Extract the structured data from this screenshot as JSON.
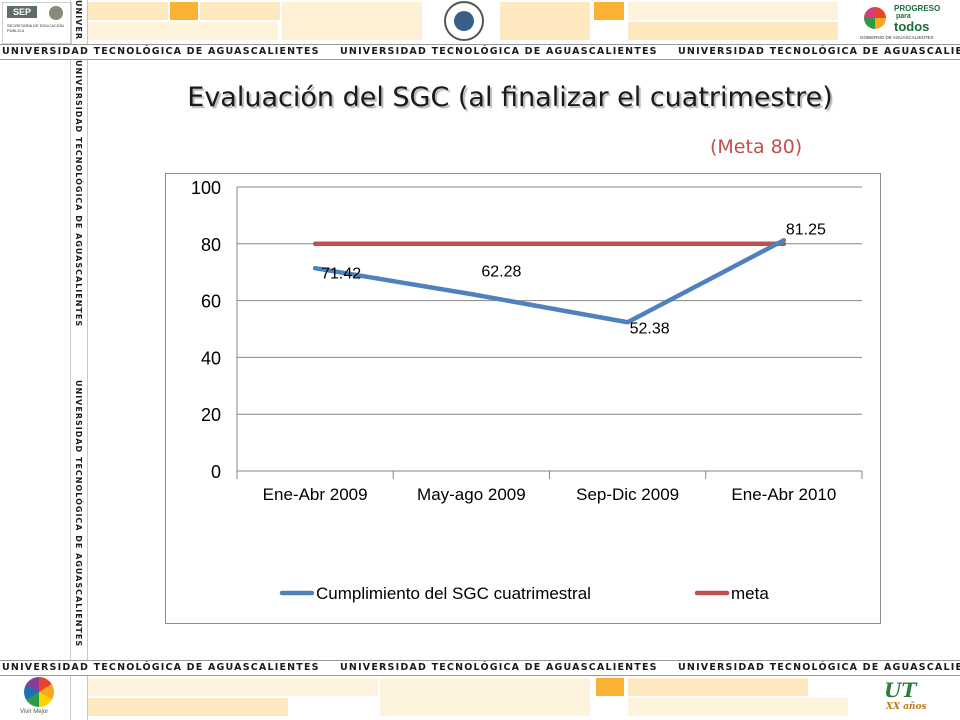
{
  "header": {
    "sep_logo_text": "SEP",
    "sep_subtitle": "SECRETARÍA DE EDUCACIÓN PÚBLICA",
    "corner_text": "UNIVER",
    "strip_text": "UNIVERSIDAD TECNOLÓGICA DE AGUASCALIENTES",
    "right_logo_line1": "PROGRESO",
    "right_logo_line2": "para",
    "right_logo_line3": "todos",
    "right_logo_line4": "GOBIERNO DE AGUASCALIENTES"
  },
  "footer": {
    "left_logo_caption": "Vivir Mejor",
    "right_logo_text": "UT",
    "right_logo_sub": "XX años"
  },
  "slide": {
    "title": "Evaluación del SGC (al finalizar el cuatrimestre)",
    "goal_note": "(Meta 80)"
  },
  "colors": {
    "series1": "#4f81bd",
    "series2": "#c0504d",
    "title": "#1a1a1a",
    "goal_note": "#c0504d"
  },
  "chart_data": {
    "type": "line",
    "categories": [
      "Ene-Abr 2009",
      "May-ago 2009",
      "Sep-Dic 2009",
      "Ene-Abr 2010"
    ],
    "series": [
      {
        "name": "Cumplimiento del SGC cuatrimestral",
        "values": [
          71.42,
          62.28,
          52.38,
          81.25
        ],
        "labels": [
          "71.42",
          "62.28",
          "52.38",
          "81.25"
        ],
        "color": "#4f81bd"
      },
      {
        "name": "meta",
        "values": [
          80,
          80,
          80,
          80
        ],
        "color": "#c0504d"
      }
    ],
    "yticks": [
      "0",
      "20",
      "40",
      "60",
      "80",
      "100"
    ],
    "ylim": [
      0,
      100
    ],
    "grid": true,
    "legend": "bottom"
  }
}
